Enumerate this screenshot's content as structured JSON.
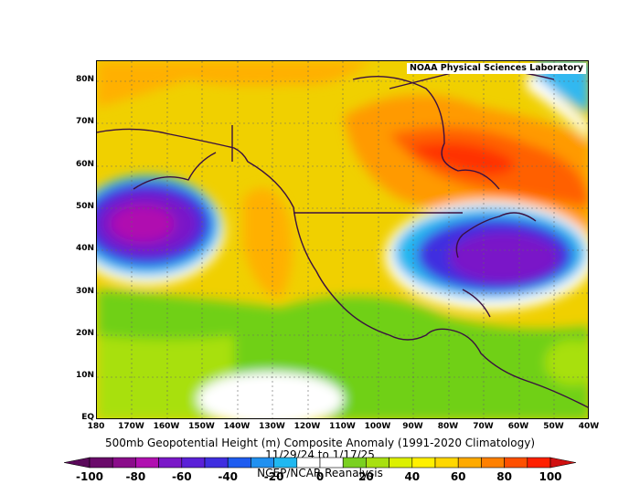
{
  "map": {
    "credit": "NOAA Physical Sciences Laboratory",
    "lat_labels": [
      "80N",
      "70N",
      "60N",
      "50N",
      "40N",
      "30N",
      "20N",
      "10N",
      "EQ"
    ],
    "lon_labels": [
      "180",
      "170W",
      "160W",
      "150W",
      "140W",
      "130W",
      "120W",
      "110W",
      "100W",
      "90W",
      "80W",
      "70W",
      "60W",
      "50W",
      "40W"
    ]
  },
  "titles": {
    "line1": "500mb Geopotential Height (m) Composite Anomaly (1991-2020 Climatology)",
    "line2": "11/29/24  to 1/17/25",
    "line3": "NCEP/NCAR Reanalysis"
  },
  "colorbar": {
    "labels": [
      "-100",
      "-80",
      "-60",
      "-40",
      "-20",
      "0",
      "20",
      "40",
      "60",
      "80",
      "100"
    ],
    "colors": [
      "#6a0a6a",
      "#8a0c8a",
      "#b010b0",
      "#7a18c8",
      "#5a20d8",
      "#3f2ee0",
      "#1e5cf0",
      "#2090f0",
      "#20b8f0",
      "#ffffff",
      "#ffffff",
      "#7ad020",
      "#a8e010",
      "#dcf000",
      "#fff000",
      "#ffd700",
      "#ffaa00",
      "#ff8000",
      "#ff5000",
      "#ff2000"
    ],
    "arrow_left": "#5a0a5a",
    "arrow_right": "#d01010"
  }
}
